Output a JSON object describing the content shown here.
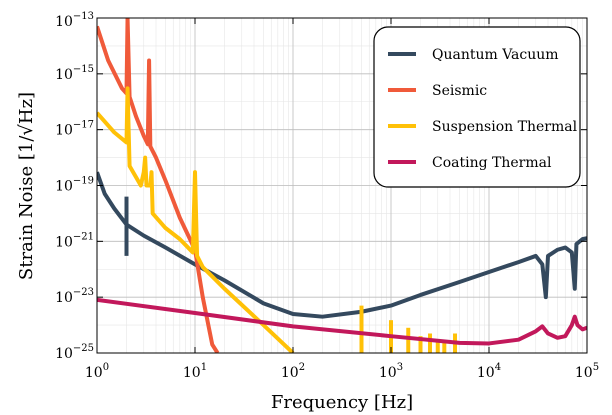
{
  "chart_data": {
    "type": "line",
    "title": "",
    "xlabel": "Frequency [Hz]",
    "ylabel": "Strain Noise [1/√Hz]",
    "x_scale": "log",
    "y_scale": "log",
    "xlim": [
      1,
      100000
    ],
    "ylim": [
      1e-25,
      1e-13
    ],
    "grid": true,
    "legend_position": "top-right",
    "x_ticks": [
      {
        "value": 1,
        "base": "10",
        "exp": "0"
      },
      {
        "value": 10,
        "base": "10",
        "exp": "1"
      },
      {
        "value": 100,
        "base": "10",
        "exp": "2"
      },
      {
        "value": 1000,
        "base": "10",
        "exp": "3"
      },
      {
        "value": 10000,
        "base": "10",
        "exp": "4"
      },
      {
        "value": 100000,
        "base": "10",
        "exp": "5"
      }
    ],
    "y_ticks": [
      {
        "value": 1e-25,
        "base": "10",
        "exp": "−25"
      },
      {
        "value": 1e-23,
        "base": "10",
        "exp": "−23"
      },
      {
        "value": 1e-21,
        "base": "10",
        "exp": "−21"
      },
      {
        "value": 1e-19,
        "base": "10",
        "exp": "−19"
      },
      {
        "value": 1e-17,
        "base": "10",
        "exp": "−17"
      },
      {
        "value": 1e-15,
        "base": "10",
        "exp": "−15"
      },
      {
        "value": 1e-13,
        "base": "10",
        "exp": "−13"
      }
    ],
    "series": [
      {
        "name": "Quantum Vacuum",
        "color": "#34495e",
        "points": [
          [
            1,
            3e-19
          ],
          [
            1.2,
            5e-20
          ],
          [
            1.5,
            1.5e-20
          ],
          [
            2,
            4e-21
          ],
          [
            3,
            1.6e-21
          ],
          [
            5,
            6e-22
          ],
          [
            10,
            1.5e-22
          ],
          [
            20,
            4e-23
          ],
          [
            50,
            6e-24
          ],
          [
            100,
            2.5e-24
          ],
          [
            200,
            2e-24
          ],
          [
            500,
            3e-24
          ],
          [
            1000,
            5e-24
          ],
          [
            2000,
            1.2e-23
          ],
          [
            5000,
            3.5e-23
          ],
          [
            10000,
            8e-23
          ],
          [
            20000,
            1.8e-22
          ],
          [
            30000,
            3e-22
          ],
          [
            35000,
            1.5e-22
          ],
          [
            38000,
            1e-23
          ],
          [
            40000,
            3e-22
          ],
          [
            50000,
            5e-22
          ],
          [
            60000,
            6e-22
          ],
          [
            70000,
            4e-22
          ],
          [
            75000,
            2e-23
          ],
          [
            78000,
            8e-22
          ],
          [
            90000,
            1.2e-21
          ],
          [
            100000,
            1.3e-21
          ]
        ],
        "spikes": [
          {
            "x": 2,
            "y_low": 3e-22,
            "y_high": 4e-20
          }
        ]
      },
      {
        "name": "Seismic",
        "color": "#f05a3a",
        "points": [
          [
            1,
            5e-14
          ],
          [
            1.3,
            3e-15
          ],
          [
            1.8,
            3e-16
          ],
          [
            2,
            2e-16
          ],
          [
            2.05,
            1e-13
          ],
          [
            2.15,
            1.5e-16
          ],
          [
            2.5,
            3e-17
          ],
          [
            3,
            6e-18
          ],
          [
            3.3,
            3e-18
          ],
          [
            3.4,
            3e-15
          ],
          [
            3.5,
            2.5e-18
          ],
          [
            4,
            1e-18
          ],
          [
            5,
            1.5e-19
          ],
          [
            7,
            7e-21
          ],
          [
            10,
            5e-22
          ],
          [
            12,
            1e-23
          ],
          [
            15,
            2e-25
          ],
          [
            17,
            1e-25
          ]
        ]
      },
      {
        "name": "Suspension Thermal",
        "color": "#ffc107",
        "points": [
          [
            1,
            4e-17
          ],
          [
            1.5,
            8e-18
          ],
          [
            2,
            3.5e-18
          ],
          [
            2.05,
            3e-16
          ],
          [
            2.15,
            5e-19
          ],
          [
            2.5,
            2e-19
          ],
          [
            2.8,
            1e-19
          ],
          [
            3,
            3e-19
          ],
          [
            3.1,
            1e-18
          ],
          [
            3.2,
            1e-19
          ],
          [
            3.5,
            1e-19
          ],
          [
            3.6,
            3e-19
          ],
          [
            3.7,
            1e-20
          ],
          [
            5,
            3e-21
          ],
          [
            7,
            1.2e-21
          ],
          [
            9.5,
            4e-22
          ],
          [
            10,
            3e-19
          ],
          [
            10.5,
            3e-22
          ],
          [
            12,
            1.2e-22
          ],
          [
            20,
            2e-23
          ],
          [
            50,
            1e-24
          ],
          [
            100,
            1e-25
          ]
        ],
        "spikes": [
          {
            "x": 500,
            "y_low": 1e-25,
            "y_high": 5e-24
          },
          {
            "x": 1000,
            "y_low": 1e-25,
            "y_high": 1.5e-24
          },
          {
            "x": 1500,
            "y_low": 1e-25,
            "y_high": 8e-25
          },
          {
            "x": 2000,
            "y_low": 1e-25,
            "y_high": 4e-25
          },
          {
            "x": 2500,
            "y_low": 1e-25,
            "y_high": 5e-25
          },
          {
            "x": 3000,
            "y_low": 1e-25,
            "y_high": 2.5e-25
          },
          {
            "x": 3500,
            "y_low": 1e-25,
            "y_high": 2.5e-25
          },
          {
            "x": 4500,
            "y_low": 1e-25,
            "y_high": 5e-25
          }
        ]
      },
      {
        "name": "Coating Thermal",
        "color": "#c2185b",
        "points": [
          [
            1,
            8e-24
          ],
          [
            10,
            2.7e-24
          ],
          [
            100,
            9e-25
          ],
          [
            1000,
            4e-25
          ],
          [
            5000,
            2.3e-25
          ],
          [
            10000,
            2.2e-25
          ],
          [
            20000,
            3e-25
          ],
          [
            30000,
            6e-25
          ],
          [
            35000,
            9e-25
          ],
          [
            40000,
            5e-25
          ],
          [
            50000,
            3.5e-25
          ],
          [
            60000,
            4e-25
          ],
          [
            70000,
            1e-24
          ],
          [
            75000,
            2e-24
          ],
          [
            80000,
            1e-24
          ],
          [
            90000,
            7e-25
          ],
          [
            100000,
            8e-25
          ]
        ]
      }
    ]
  }
}
